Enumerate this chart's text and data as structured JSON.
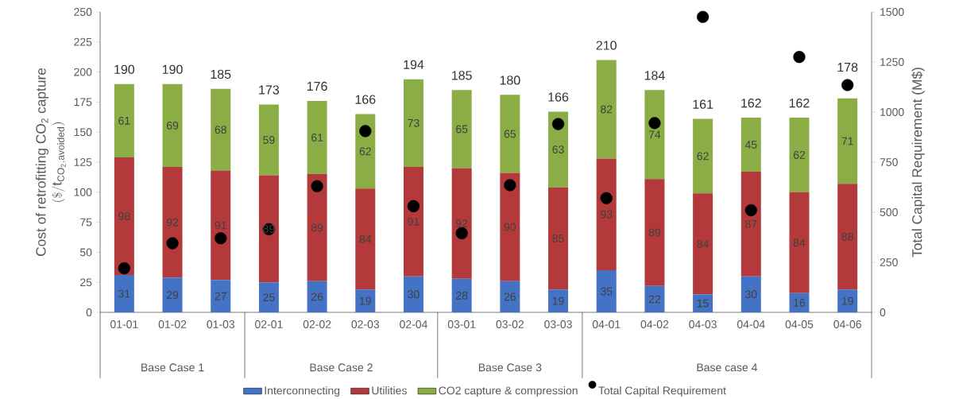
{
  "chart_data": {
    "type": "bar",
    "stacked": true,
    "categories": [
      "01-01",
      "01-02",
      "01-03",
      "02-01",
      "02-02",
      "02-03",
      "02-04",
      "03-01",
      "03-02",
      "03-03",
      "04-01",
      "04-02",
      "04-03",
      "04-04",
      "04-05",
      "04-06"
    ],
    "series": [
      {
        "name": "Interconnecting",
        "color": "#4472c4",
        "values": [
          31,
          29,
          27,
          25,
          26,
          19,
          30,
          28,
          26,
          19,
          35,
          22,
          15,
          30,
          16,
          19
        ],
        "value_labels": [
          "31",
          "29",
          "27",
          "25",
          "26",
          "19",
          "30",
          "28",
          "26",
          "19",
          "35",
          "22",
          "15",
          "30",
          "16",
          "19"
        ]
      },
      {
        "name": "Utilities",
        "color": "#b3393b",
        "values": [
          98,
          92,
          91,
          89,
          89,
          84,
          91,
          92,
          90,
          85,
          93,
          89,
          84,
          87,
          84,
          88
        ],
        "value_labels": [
          "98",
          "92",
          "91",
          "89",
          "89",
          "84",
          "91",
          "92",
          "90",
          "85",
          "93",
          "89",
          "84",
          "87",
          "84",
          "88"
        ]
      },
      {
        "name": "CO2 capture & compression",
        "color": "#8aae45",
        "values": [
          61,
          69,
          68,
          59,
          61,
          62,
          73,
          65,
          65,
          63,
          82,
          74,
          62,
          45,
          62,
          71
        ],
        "value_labels": [
          "61",
          "69",
          "68",
          "59",
          "61",
          "62",
          "73",
          "65",
          "65",
          "63",
          "82",
          "74",
          "62",
          "45",
          "62",
          "71"
        ]
      },
      {
        "name": "Total Capital Requirement",
        "type": "scatter",
        "axis": "y2",
        "marker": "circle",
        "color": "#000000",
        "values": [
          220,
          345,
          370,
          415,
          630,
          905,
          530,
          395,
          635,
          940,
          570,
          945,
          1475,
          510,
          1275,
          1135
        ]
      }
    ],
    "totals": [
      "190",
      "190",
      "185",
      "173",
      "176",
      "166",
      "194",
      "185",
      "180",
      "166",
      "210",
      "184",
      "161",
      "162",
      "162",
      "178"
    ],
    "ylabel": "\\begin{array}{c}\\mathrm{Cost\\ of\\ retrofitting\\ CO_{2}\\ capture}\\\\ \\mathrm{(\\$/t_{CO_{2},avoided})}\\end{array}",
    "y2label": "Total Capital Requirement (M$)",
    "ylim": [
      0,
      250
    ],
    "yticks": [
      0,
      25,
      50,
      75,
      100,
      125,
      150,
      175,
      200,
      225,
      250
    ],
    "y2lim": [
      0,
      1500
    ],
    "y2ticks": [
      0,
      250,
      500,
      750,
      1000,
      1250,
      1500
    ],
    "annotations": [
      "Base Case 1",
      "Base Case 2",
      "Base Case 3",
      "Base case 4"
    ],
    "legend": "bottom"
  }
}
